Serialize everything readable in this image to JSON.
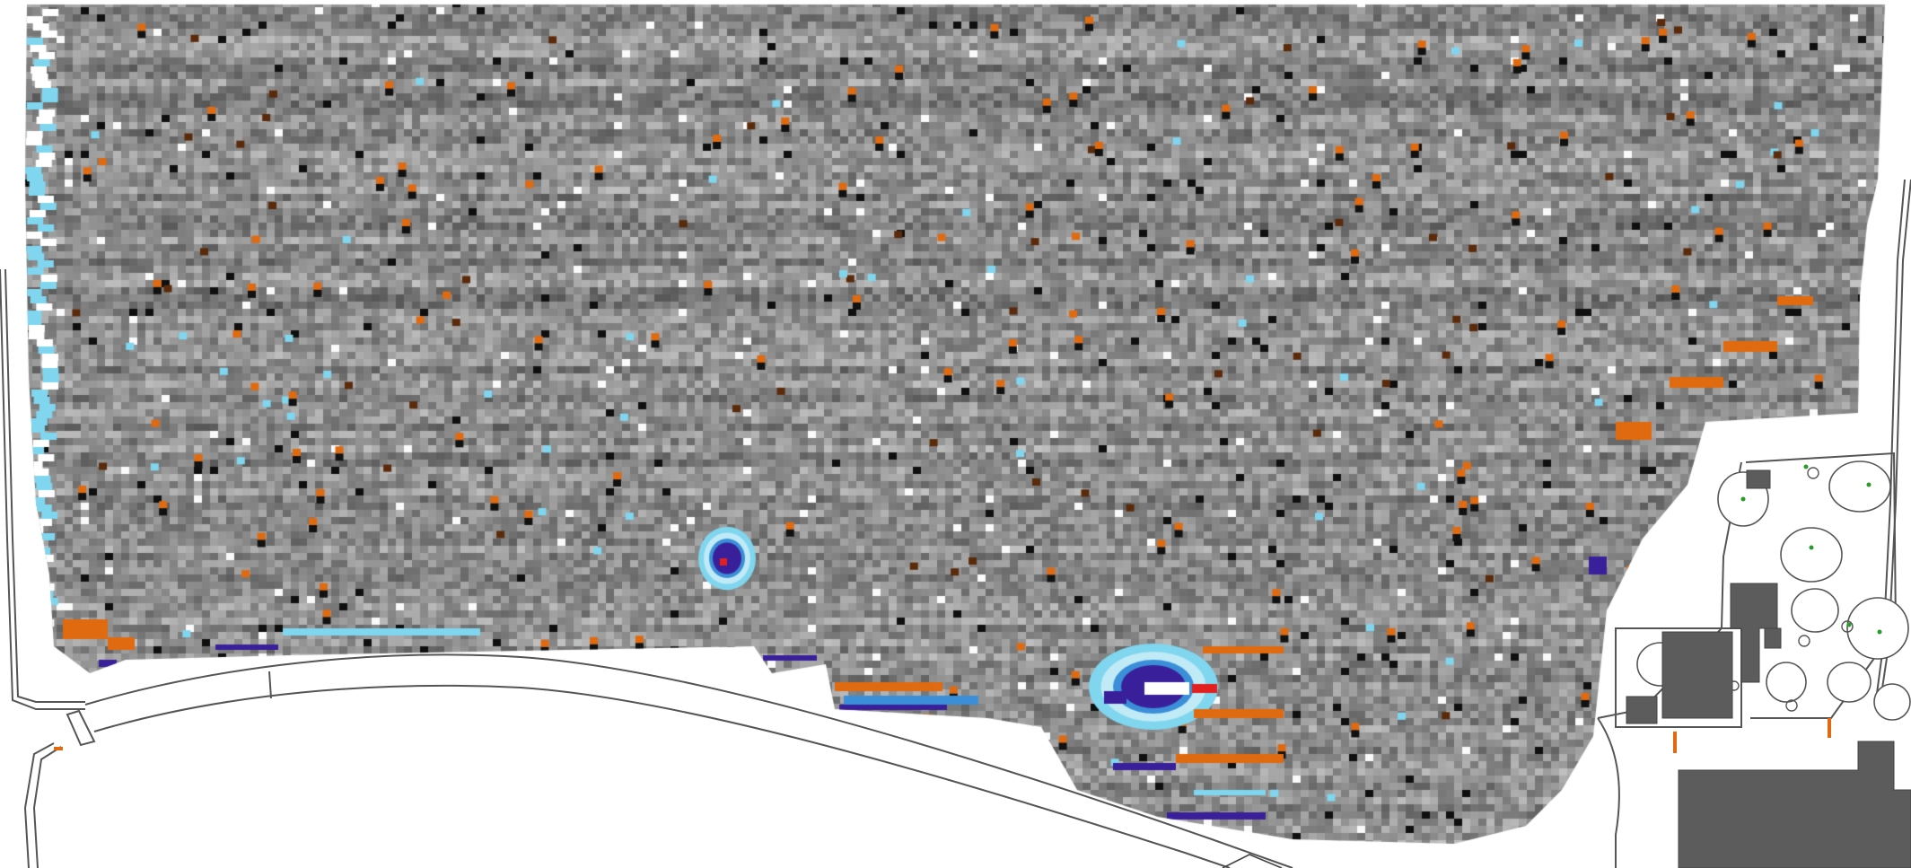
{
  "map": {
    "kind": "magnetometry survey overlay on site plan",
    "palette": {
      "gray_dark": "#1a1a1a",
      "gray_mid": "#8c8c8c",
      "gray_light": "#e6e6e6",
      "orange": "#e06a10",
      "brown": "#5a2a0a",
      "cyan": "#7fd6ee",
      "blue": "#3a8fd8",
      "purple": "#3a1f9a",
      "red": "#e32020",
      "building": "#5c5c5c",
      "plan_line": "#555555",
      "tree_dot": "#2a9a2a"
    },
    "text_labels": []
  }
}
